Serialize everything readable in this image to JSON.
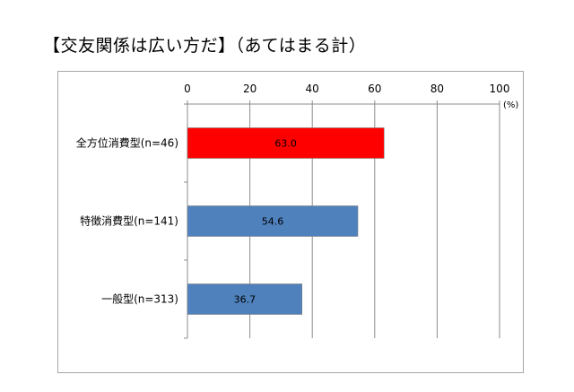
{
  "chart_data": {
    "type": "bar",
    "orientation": "horizontal",
    "title": "【交友関係は広い方だ】（あてはまる計）",
    "categories": [
      "全方位消費型(n=46)",
      "特徴消費型(n=141)",
      "一般型(n=313)"
    ],
    "values": [
      63.0,
      54.6,
      36.7
    ],
    "value_labels": [
      "63.0",
      "54.6",
      "36.7"
    ],
    "bar_colors": [
      "#ff0000",
      "#4f81bd",
      "#4f81bd"
    ],
    "xlim": [
      0,
      100
    ],
    "x_ticks": [
      "0",
      "20",
      "40",
      "60",
      "80",
      "100"
    ],
    "unit_label": "(%)",
    "grid": true,
    "legend": "none"
  }
}
